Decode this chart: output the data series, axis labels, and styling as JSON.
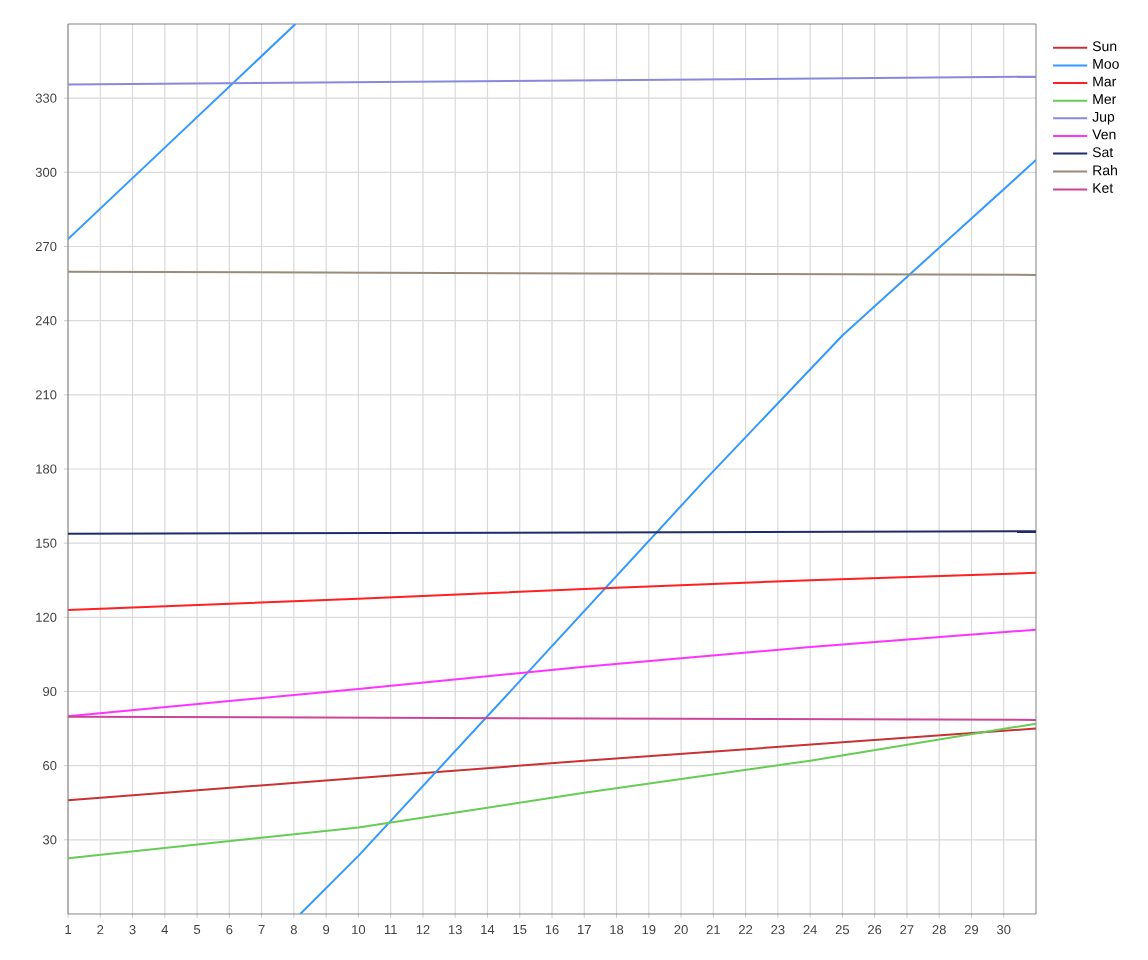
{
  "chart_data": {
    "type": "line",
    "xlim": [
      1,
      31
    ],
    "ylim": [
      0,
      360
    ],
    "xticks": [
      1,
      2,
      3,
      4,
      5,
      6,
      7,
      8,
      9,
      10,
      11,
      12,
      13,
      14,
      15,
      16,
      17,
      18,
      19,
      20,
      21,
      22,
      23,
      24,
      25,
      26,
      27,
      28,
      29,
      30
    ],
    "yticks": [
      30,
      60,
      90,
      120,
      150,
      180,
      210,
      240,
      270,
      300,
      330
    ],
    "grid": true,
    "legend": "top right",
    "marker": "none",
    "line_style": "solid",
    "series": [
      {
        "name": "Sun",
        "color": "#c83232",
        "x": [
          1,
          10,
          17,
          24,
          31
        ],
        "values": [
          46,
          55,
          62,
          68.5,
          75
        ]
      },
      {
        "name": "Moo",
        "color": "#3399ff",
        "x": [
          1,
          4,
          8.05,
          8.1,
          8.2,
          10,
          15.2,
          20.7,
          25,
          31
        ],
        "values": [
          273,
          310,
          360,
          null,
          0,
          23.5,
          97,
          175,
          234,
          305
        ]
      },
      {
        "name": "Mar",
        "color": "#ff2020",
        "x": [
          1,
          10,
          17,
          24,
          31
        ],
        "values": [
          123,
          127.5,
          131.5,
          135,
          138
        ]
      },
      {
        "name": "Mer",
        "color": "#66cc55",
        "x": [
          1,
          10,
          17,
          24,
          31
        ],
        "values": [
          22.5,
          35,
          49,
          62,
          77
        ]
      },
      {
        "name": "Jup",
        "color": "#8888dd",
        "x": [
          1,
          31
        ],
        "values": [
          335.5,
          338.7
        ]
      },
      {
        "name": "Ven",
        "color": "#ff33ff",
        "x": [
          1,
          10,
          17,
          24,
          31
        ],
        "values": [
          80,
          91,
          100,
          108,
          115
        ]
      },
      {
        "name": "Sat",
        "color": "#1f2a6b",
        "x": [
          1,
          31
        ],
        "values": [
          153.8,
          154.8
        ]
      },
      {
        "name": "Rah",
        "color": "#9a8a7a",
        "x": [
          1,
          31
        ],
        "values": [
          259.8,
          258.5
        ]
      },
      {
        "name": "Ket",
        "color": "#cc4499",
        "x": [
          1,
          31
        ],
        "values": [
          79.8,
          78.5
        ]
      }
    ]
  }
}
